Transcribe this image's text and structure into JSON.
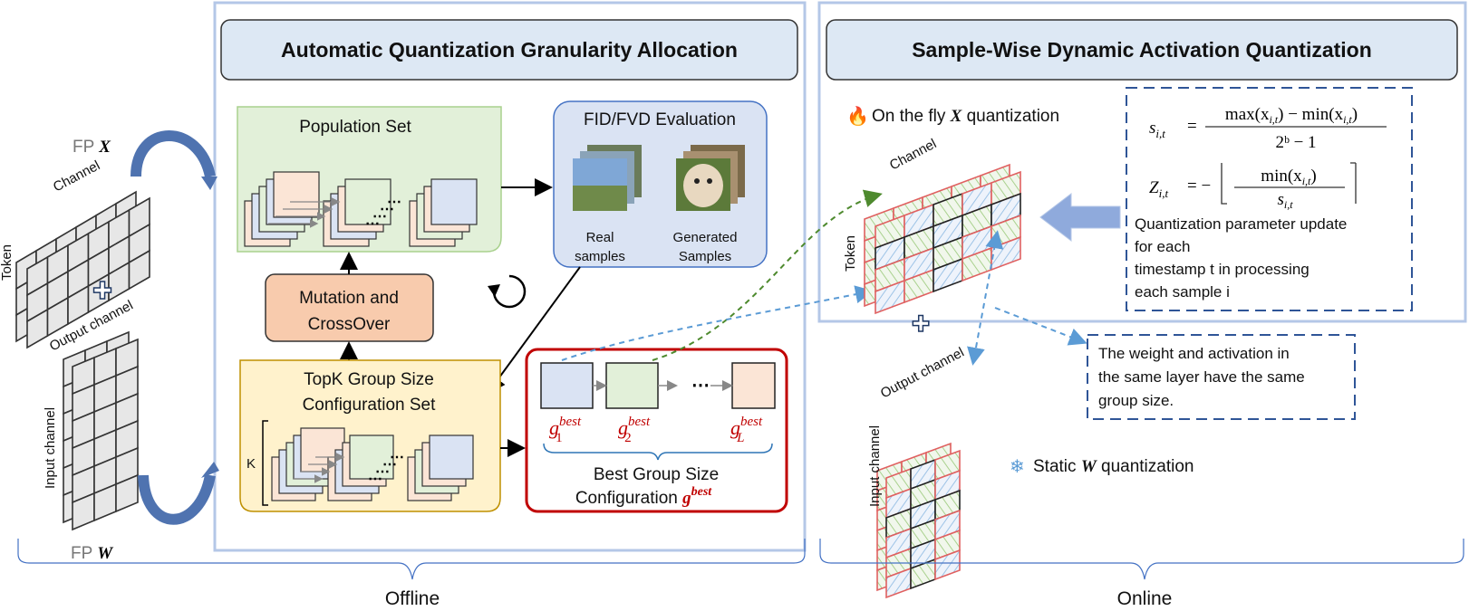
{
  "left": {
    "fp_x": "FP",
    "x_sym": "X",
    "fp_w": "FP",
    "w_sym": "W",
    "token": "Token",
    "channel": "Channel",
    "output_channel": "Output channel",
    "input_channel": "Input channel"
  },
  "offline": {
    "title": "Automatic Quantization Granularity Allocation",
    "population_set": "Population Set",
    "evaluation": {
      "title": "FID/FVD Evaluation",
      "real_1": "Real",
      "real_2": "samples",
      "gen_1": "Generated",
      "gen_2": "Samples"
    },
    "mutation_1": "Mutation and",
    "mutation_2": "CrossOver",
    "topk_1": "TopK Group Size",
    "topk_2": "Configuration Set",
    "k": "K",
    "ellipsis": "⋯",
    "best": {
      "g": "g",
      "sup": "best",
      "sub1": "1",
      "sub2": "2",
      "subL": "L",
      "label_1": "Best Group Size",
      "label_2": "Configuration",
      "g_best": "g",
      "g_best_sup": "best"
    },
    "phase": "Offline"
  },
  "online": {
    "title": "Sample-Wise Dynamic Activation Quantization",
    "on_the_fly": "On the fly",
    "on_the_fly_sym": "X",
    "on_the_fly_2": "quantization",
    "formula": {
      "s_lhs": "s",
      "s_sub": "i,t",
      "s_num": "max(x",
      "s_num_2": ") − min(x",
      "s_num_3": ")",
      "s_den": "2ᵇ − 1",
      "z_lhs": "Z",
      "z_num": "min(x",
      "z_num_2": ")",
      "z_den": "s",
      "eq": "=",
      "neg": "= −"
    },
    "update_text": [
      "Quantization parameter update",
      "for each",
      " timestamp t in processing",
      "each sample i"
    ],
    "token": "Token",
    "channel": "Channel",
    "output_channel": "Output channel",
    "input_channel": "Input channel",
    "note": [
      "The weight and activation in",
      "the same layer have the same",
      "group size."
    ],
    "static": "Static",
    "static_sym": "W",
    "static_2": "quantization",
    "phase": "Online"
  },
  "colors": {
    "frame": "#b4c7e7",
    "title_fill": "#dde8f4",
    "green": "#e2f0d9",
    "blue": "#dae3f3",
    "orange": "#f8cbad",
    "yellow": "#fff2cc",
    "red": "#c00000",
    "arrow": "#4f73b0"
  }
}
